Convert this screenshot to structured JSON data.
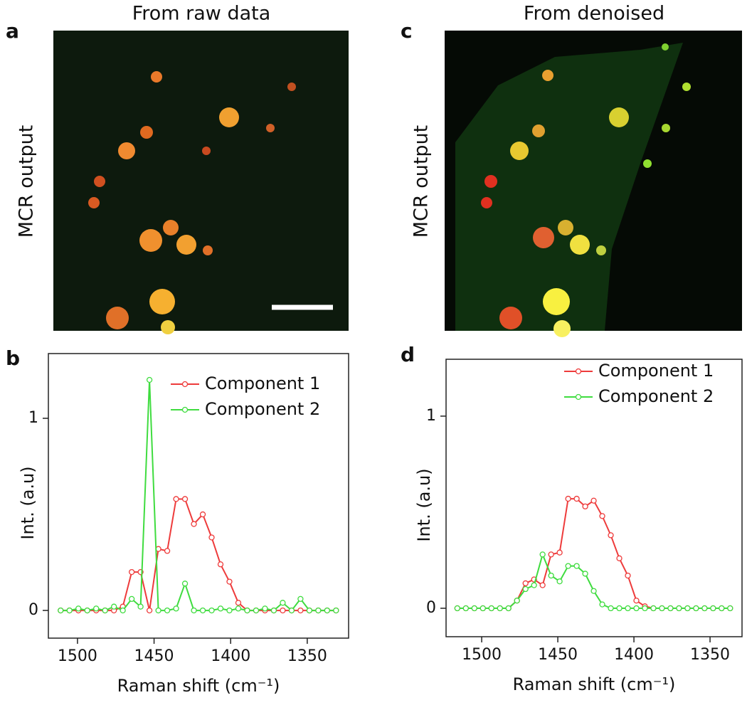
{
  "panel_labels": [
    "a",
    "b",
    "c",
    "d"
  ],
  "image_titles": [
    "From raw data",
    "From denoised"
  ],
  "image_side_labels": [
    "MCR output",
    "MCR output"
  ],
  "chart_data": [
    {
      "type": "line",
      "x_label": "Raman shift (cm⁻¹)",
      "y_label": "Int. (a.u)",
      "x": [
        1511,
        1505.2,
        1499.4,
        1493.6,
        1487.8,
        1482,
        1476.2,
        1470.4,
        1464.6,
        1458.8,
        1453,
        1447.2,
        1441.4,
        1435.6,
        1429.8,
        1424,
        1418.2,
        1412.4,
        1406.6,
        1400.8,
        1395,
        1389.2,
        1383.4,
        1377.6,
        1371.8,
        1366,
        1360.2,
        1354.4,
        1348.6,
        1342.8,
        1337,
        1331.2
      ],
      "series": [
        {
          "name": "Component 1",
          "color": "#ee3b3b",
          "values": [
            0,
            0,
            0,
            0,
            0,
            0,
            0,
            0.02,
            0.2,
            0.2,
            0,
            0.32,
            0.31,
            0.58,
            0.58,
            0.45,
            0.5,
            0.38,
            0.24,
            0.15,
            0.04,
            0,
            0,
            0,
            0,
            0,
            0,
            0,
            0,
            0,
            0,
            0
          ]
        },
        {
          "name": "Component 2",
          "color": "#3fdc3f",
          "values": [
            0,
            0,
            0.01,
            0,
            0.01,
            0,
            0.02,
            0,
            0.06,
            0.02,
            1.2,
            0,
            0,
            0.01,
            0.14,
            0,
            0,
            0,
            0.01,
            0,
            0.01,
            0,
            0,
            0.01,
            0,
            0.04,
            0,
            0.06,
            0,
            0,
            0,
            0
          ]
        }
      ],
      "xlim": [
        1519,
        1323
      ],
      "ylim": [
        -0.144,
        1.337
      ],
      "xticks": [
        1500,
        1450,
        1400,
        1350
      ],
      "yticks": [
        0,
        1
      ],
      "legend": "upper right"
    },
    {
      "type": "line",
      "x_label": "Raman shift (cm⁻¹)",
      "y_label": "Int. (a.u)",
      "x": [
        1516,
        1510.4,
        1504.8,
        1499.2,
        1493.6,
        1488,
        1482.4,
        1476.8,
        1471.2,
        1465.6,
        1460,
        1454.4,
        1448.8,
        1443.2,
        1437.6,
        1432,
        1426.4,
        1420.8,
        1415.2,
        1409.6,
        1404,
        1398.4,
        1392.8,
        1387.2,
        1381.6,
        1376,
        1370.4,
        1364.8,
        1359.2,
        1353.6,
        1348,
        1342.4,
        1336.8
      ],
      "series": [
        {
          "name": "Component 1",
          "color": "#ee3b3b",
          "values": [
            0,
            0,
            0,
            0,
            0,
            0,
            0,
            0.04,
            0.13,
            0.15,
            0.12,
            0.28,
            0.29,
            0.57,
            0.57,
            0.53,
            0.56,
            0.48,
            0.38,
            0.26,
            0.17,
            0.04,
            0.01,
            0,
            0,
            0,
            0,
            0,
            0,
            0,
            0,
            0,
            0
          ]
        },
        {
          "name": "Component 2",
          "color": "#3fdc3f",
          "values": [
            0,
            0,
            0,
            0,
            0,
            0,
            0,
            0.04,
            0.1,
            0.12,
            0.28,
            0.17,
            0.14,
            0.22,
            0.22,
            0.18,
            0.09,
            0.02,
            0,
            0,
            0,
            0,
            0,
            0,
            0,
            0,
            0,
            0,
            0,
            0,
            0,
            0,
            0
          ]
        }
      ],
      "xlim": [
        1523.4,
        1329
      ],
      "ylim": [
        -0.148,
        1.296
      ],
      "xticks": [
        1500,
        1450,
        1400,
        1350
      ],
      "yticks": [
        0,
        1
      ],
      "legend": "upper right"
    }
  ]
}
